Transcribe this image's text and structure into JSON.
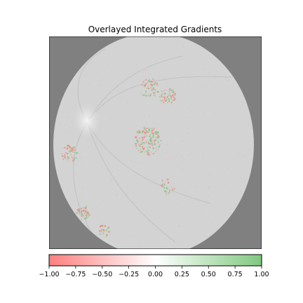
{
  "chart_data": {
    "type": "heatmap",
    "title": "Overlayed Integrated Gradients",
    "colorbar": {
      "min": -1.0,
      "max": 1.0,
      "ticks": [
        -1.0,
        -0.75,
        -0.5,
        -0.25,
        0.0,
        0.25,
        0.5,
        0.75,
        1.0
      ],
      "tick_labels": [
        "−1.00",
        "−0.75",
        "−0.50",
        "−0.25",
        "0.00",
        "0.25",
        "0.50",
        "0.75",
        "1.00"
      ],
      "colors": {
        "negative": "#ff7f7f",
        "zero": "#ffffff",
        "positive": "#7fc87f"
      },
      "orientation": "horizontal",
      "placement": "bottom"
    },
    "image": {
      "subject": "fundus photograph",
      "background_color": "#808080",
      "retina_color": "#d3d3d3",
      "axes_ticks": false
    },
    "attribution_clusters": [
      {
        "region": "macula center",
        "density": "high"
      },
      {
        "region": "upper center",
        "density": "medium"
      },
      {
        "region": "upper right",
        "density": "medium"
      },
      {
        "region": "left edge",
        "density": "medium"
      },
      {
        "region": "lower left",
        "density": "medium"
      },
      {
        "region": "bottom left",
        "density": "low"
      },
      {
        "region": "lower center",
        "density": "low"
      }
    ]
  }
}
